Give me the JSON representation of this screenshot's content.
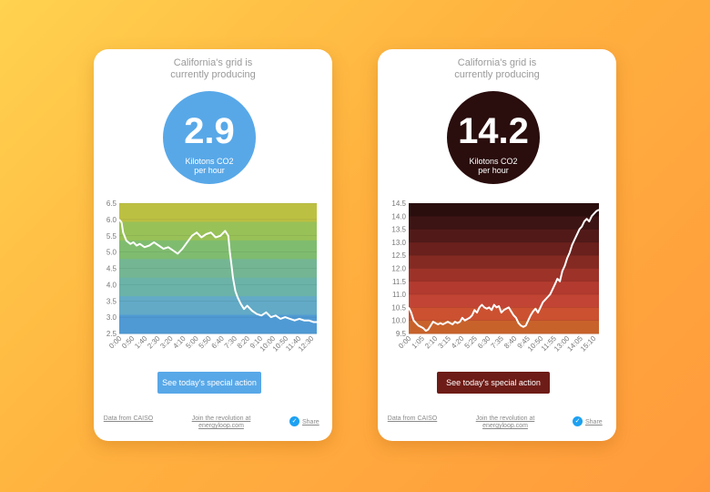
{
  "cards": [
    {
      "heading_line1": "California's grid is",
      "heading_line2": "currently producing",
      "value": "2.9",
      "unit_line1": "Kilotons CO2",
      "unit_line2": "per hour",
      "circle_color": "#58a8e8",
      "button_label": "See today's special action",
      "button_color": "#58a8e8",
      "data_source": "Data from CAISO",
      "join_line1": "Join the revolution at",
      "join_line2": "energyloop.com",
      "share_label": "Share"
    },
    {
      "heading_line1": "California's grid is",
      "heading_line2": "currently producing",
      "value": "14.2",
      "unit_line1": "Kilotons CO2",
      "unit_line2": "per hour",
      "circle_color": "#2a0d0d",
      "button_label": "See today's special action",
      "button_color": "#6e1c17",
      "data_source": "Data from CAISO",
      "join_line1": "Join the revolution at",
      "join_line2": "energyloop.com",
      "share_label": "Share"
    }
  ],
  "chart_data": [
    {
      "type": "line",
      "ylim": [
        2.5,
        6.5
      ],
      "yticks": [
        "6.5",
        "6.0",
        "5.5",
        "5.0",
        "4.5",
        "4.0",
        "3.5",
        "3.0",
        "2.5"
      ],
      "xticks": [
        "0:00",
        "0:50",
        "1:40",
        "2:30",
        "3:20",
        "4:10",
        "5:00",
        "5:50",
        "6:40",
        "7:30",
        "8:20",
        "9:10",
        "10:00",
        "10:50",
        "11:40",
        "12:30"
      ],
      "band_colors": [
        "#bcc042",
        "#98c158",
        "#7fbc6f",
        "#74b693",
        "#6bb2a8",
        "#62aac6",
        "#4f9ad4"
      ],
      "line_color": "#ffffff",
      "series": [
        {
          "x": [
            0,
            0.15,
            0.25,
            0.45,
            0.7,
            0.9,
            1.1,
            1.3,
            1.6,
            1.9,
            2.2,
            2.5,
            2.8,
            3.1,
            3.4,
            3.7,
            4.0,
            4.3,
            4.6,
            4.9,
            5.2,
            5.5,
            5.8,
            6.1,
            6.4,
            6.7,
            6.9,
            7.0,
            7.1,
            7.2,
            7.35,
            7.5,
            7.7,
            7.9,
            8.1,
            8.4,
            8.7,
            9.0,
            9.3,
            9.6,
            9.9,
            10.2,
            10.5,
            10.8,
            11.1,
            11.4,
            11.7,
            12.0,
            12.3,
            12.5
          ],
          "values": [
            6.0,
            5.9,
            5.6,
            5.35,
            5.25,
            5.3,
            5.2,
            5.25,
            5.15,
            5.2,
            5.3,
            5.2,
            5.1,
            5.15,
            5.05,
            4.95,
            5.1,
            5.3,
            5.5,
            5.6,
            5.45,
            5.55,
            5.6,
            5.45,
            5.5,
            5.65,
            5.5,
            5.0,
            4.6,
            4.2,
            3.8,
            3.6,
            3.4,
            3.25,
            3.35,
            3.2,
            3.1,
            3.05,
            3.15,
            3.0,
            3.05,
            2.95,
            3.0,
            2.95,
            2.9,
            2.95,
            2.9,
            2.9,
            2.85,
            2.85
          ]
        }
      ]
    },
    {
      "type": "line",
      "ylim": [
        9.5,
        14.5
      ],
      "yticks": [
        "14.5",
        "14.0",
        "13.5",
        "13.0",
        "12.5",
        "12.0",
        "11.5",
        "11.0",
        "10.5",
        "10.0",
        "9.5"
      ],
      "xticks": [
        "0:00",
        "1:05",
        "2:10",
        "3:15",
        "4:20",
        "5:25",
        "6:30",
        "7:35",
        "8:40",
        "9:45",
        "10:50",
        "11:55",
        "13:00",
        "14:05",
        "15:10"
      ],
      "band_colors": [
        "#2a0e0e",
        "#3d1414",
        "#511a19",
        "#6a201c",
        "#852a22",
        "#9d3229",
        "#b23a2f",
        "#c24434",
        "#cc5131",
        "#c8622b"
      ],
      "line_color": "#ffffff",
      "series": [
        {
          "x": [
            0,
            0.2,
            0.4,
            0.6,
            0.8,
            1.0,
            1.2,
            1.4,
            1.6,
            1.8,
            2.0,
            2.2,
            2.4,
            2.6,
            2.8,
            3.0,
            3.2,
            3.4,
            3.6,
            3.8,
            4.0,
            4.2,
            4.4,
            4.6,
            4.8,
            5.0,
            5.2,
            5.4,
            5.6,
            5.8,
            6.0,
            6.2,
            6.4,
            6.6,
            6.8,
            7.0,
            7.2,
            7.4,
            7.6,
            7.8,
            8.0,
            8.2,
            8.4,
            8.6,
            8.8,
            9.0,
            9.2,
            9.4,
            9.6,
            9.8,
            10.0,
            10.2,
            10.4,
            10.6,
            10.8,
            11.0,
            11.2,
            11.4,
            11.6,
            11.8,
            12.0,
            12.2,
            12.4,
            12.6,
            12.8,
            13.0,
            13.2,
            13.4,
            13.6,
            13.8,
            14.0,
            14.2,
            14.4,
            14.6,
            14.8,
            15.0,
            15.2,
            15.4,
            15.6
          ],
          "values": [
            10.5,
            10.3,
            10.0,
            9.9,
            9.8,
            9.75,
            9.7,
            9.6,
            9.65,
            9.8,
            9.95,
            9.9,
            9.85,
            9.9,
            9.85,
            9.9,
            9.95,
            9.9,
            9.85,
            9.95,
            9.9,
            9.95,
            10.1,
            10.0,
            10.05,
            10.1,
            10.2,
            10.4,
            10.3,
            10.5,
            10.6,
            10.5,
            10.45,
            10.5,
            10.4,
            10.6,
            10.5,
            10.55,
            10.3,
            10.4,
            10.45,
            10.5,
            10.35,
            10.2,
            10.1,
            9.9,
            9.8,
            9.75,
            9.8,
            10.0,
            10.2,
            10.35,
            10.45,
            10.3,
            10.5,
            10.7,
            10.8,
            10.9,
            11.0,
            11.2,
            11.4,
            11.6,
            11.5,
            11.9,
            12.1,
            12.4,
            12.6,
            12.9,
            13.1,
            13.3,
            13.5,
            13.6,
            13.8,
            13.9,
            13.8,
            14.0,
            14.1,
            14.2,
            14.25
          ]
        }
      ]
    }
  ]
}
